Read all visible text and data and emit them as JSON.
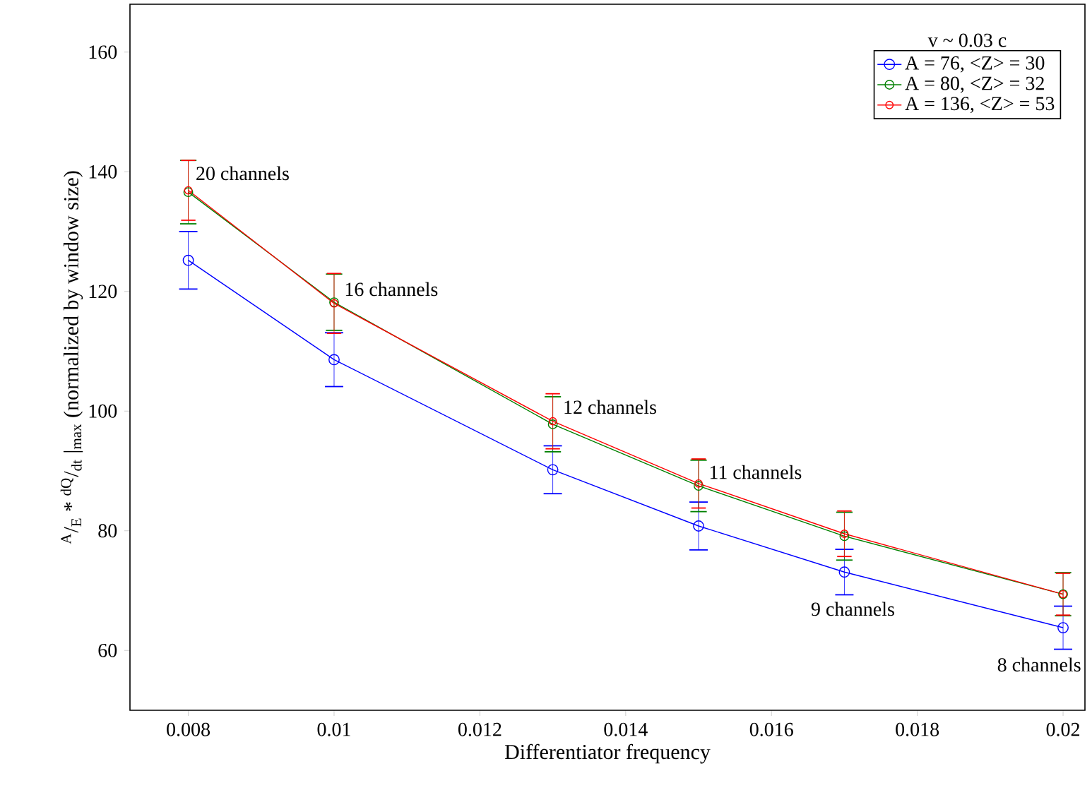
{
  "chart_data": {
    "type": "line",
    "xlabel": "Differentiator frequency",
    "ylabel": "$^{A}$/$_{E}$ * $^{dQ}$/$_{dt}$ |$_{max}$ (normalized by window size)",
    "legend_title": "v ~ 0.03 c",
    "x": [
      0.008,
      0.01,
      0.013,
      0.015,
      0.017,
      0.02
    ],
    "series": [
      {
        "name": "A = 76, <Z> = 30",
        "color": "#0000ff",
        "values": [
          125.2,
          108.6,
          90.2,
          80.8,
          73.1,
          63.8
        ],
        "errors": [
          4.8,
          4.5,
          4,
          4,
          3.8,
          3.6
        ]
      },
      {
        "name": "A = 80, <Z> = 32",
        "color": "#008000",
        "values": [
          136.6,
          118.2,
          97.8,
          87.5,
          79.1,
          69.4
        ],
        "errors": [
          5.3,
          4.7,
          4.6,
          4.3,
          4,
          3.6
        ]
      },
      {
        "name": "A = 136, <Z> = 53",
        "color": "#ff0000",
        "values": [
          136.9,
          118,
          98.3,
          87.9,
          79.5,
          69.4
        ],
        "errors": [
          5,
          5,
          4.6,
          4.1,
          3.8,
          3.5
        ]
      }
    ],
    "annotations": [
      {
        "text": "20 channels",
        "x": 0.008,
        "y": 136.9
      },
      {
        "text": "16 channels",
        "x": 0.01,
        "y": 118
      },
      {
        "text": "12 channels",
        "x": 0.013,
        "y": 98.3
      },
      {
        "text": "11 channels",
        "x": 0.015,
        "y": 87.9
      },
      {
        "text": "9 channels",
        "x": 0.017,
        "y": 73.1
      },
      {
        "text": "8 channels",
        "x": 0.02,
        "y": 63.8
      }
    ],
    "xlim": [
      0.0072,
      0.0203
    ],
    "ylim": [
      50,
      168
    ],
    "xticks": [
      0.008,
      0.01,
      0.012,
      0.014,
      0.016,
      0.018,
      0.02
    ],
    "yticks": [
      60,
      80,
      100,
      120,
      140,
      160
    ],
    "grid": false,
    "legend": "top right",
    "marker": "circle",
    "line_style": "solid"
  }
}
